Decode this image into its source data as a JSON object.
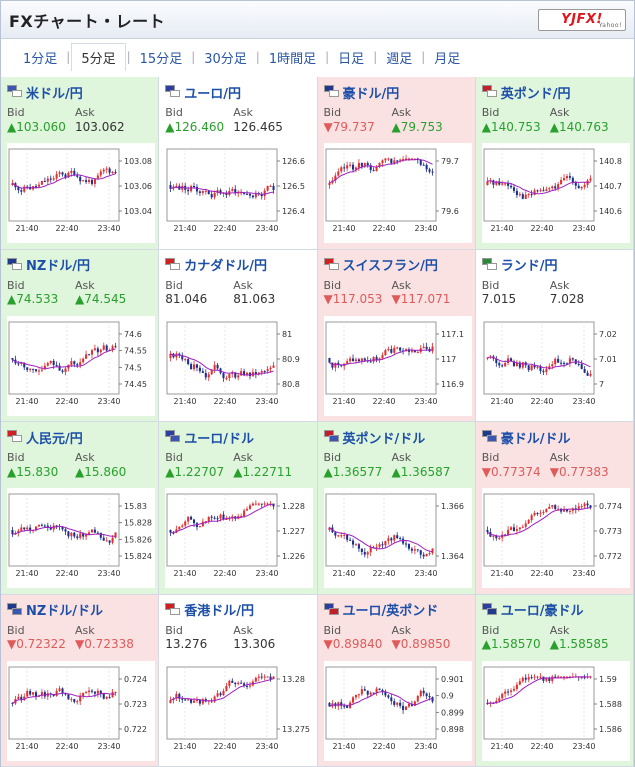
{
  "header": {
    "title": "FXチャート・レート",
    "logo": "YJFX!",
    "logo_sub": "Yahoo!"
  },
  "tabs": [
    {
      "label": "1分足",
      "active": false
    },
    {
      "label": "5分足",
      "active": true
    },
    {
      "label": "15分足",
      "active": false
    },
    {
      "label": "30分足",
      "active": false
    },
    {
      "label": "1時間足",
      "active": false
    },
    {
      "label": "日足",
      "active": false
    },
    {
      "label": "週足",
      "active": false
    },
    {
      "label": "月足",
      "active": false
    }
  ],
  "labels": {
    "bid": "Bid",
    "ask": "Ask"
  },
  "time_labels": [
    "21:40",
    "22:40",
    "23:40"
  ],
  "colors": {
    "up_card": "#dff5dc",
    "down_card": "#fbe2e2",
    "up_text": "#29a02d",
    "down_text": "#e05a5a",
    "pair_text": "#1d4fa8",
    "candle_up": "#e03030",
    "candle_down": "#1c2f8a",
    "ma": "#a020c0"
  },
  "pairs": [
    {
      "name": "米ドル/円",
      "card": "green",
      "bid": "103.060",
      "bid_dir": "up",
      "ask": "103.062",
      "ask_dir": "none",
      "flags": [
        "#3a56b0",
        "#ffffff"
      ],
      "y_ticks": [
        "103.08",
        "103.06",
        "103.04"
      ],
      "seed": 11
    },
    {
      "name": "ユーロ/円",
      "card": "white",
      "bid": "126.460",
      "bid_dir": "up",
      "ask": "126.465",
      "ask_dir": "none",
      "flags": [
        "#2a3fa0",
        "#ffffff"
      ],
      "y_ticks": [
        "126.6",
        "126.5",
        "126.4"
      ],
      "seed": 23
    },
    {
      "name": "豪ドル/円",
      "card": "red",
      "bid": "79.737",
      "bid_dir": "down",
      "ask": "79.753",
      "ask_dir": "up",
      "flags": [
        "#1f3a8a",
        "#ffffff"
      ],
      "y_ticks": [
        "79.7",
        "79.6"
      ],
      "seed": 37
    },
    {
      "name": "英ポンド/円",
      "card": "green",
      "bid": "140.753",
      "bid_dir": "up",
      "ask": "140.763",
      "ask_dir": "up",
      "flags": [
        "#c0202a",
        "#ffffff"
      ],
      "y_ticks": [
        "140.8",
        "140.7",
        "140.6"
      ],
      "seed": 41
    },
    {
      "name": "NZドル/円",
      "card": "green",
      "bid": "74.533",
      "bid_dir": "up",
      "ask": "74.545",
      "ask_dir": "up",
      "flags": [
        "#1f3a8a",
        "#ffffff"
      ],
      "y_ticks": [
        "74.6",
        "74.55",
        "74.5",
        "74.45"
      ],
      "seed": 53
    },
    {
      "name": "カナダドル/円",
      "card": "white",
      "bid": "81.046",
      "bid_dir": "none",
      "ask": "81.063",
      "ask_dir": "none",
      "flags": [
        "#d02020",
        "#ffffff"
      ],
      "y_ticks": [
        "81",
        "80.9",
        "80.8"
      ],
      "seed": 67
    },
    {
      "name": "スイスフラン/円",
      "card": "red",
      "bid": "117.053",
      "bid_dir": "down",
      "ask": "117.071",
      "ask_dir": "down",
      "flags": [
        "#d02020",
        "#ffffff"
      ],
      "y_ticks": [
        "117.1",
        "117",
        "116.9"
      ],
      "seed": 71
    },
    {
      "name": "ランド/円",
      "card": "white",
      "bid": "7.015",
      "bid_dir": "none",
      "ask": "7.028",
      "ask_dir": "none",
      "flags": [
        "#2a8a3a",
        "#ffffff"
      ],
      "y_ticks": [
        "7.02",
        "7.01",
        "7"
      ],
      "seed": 83
    },
    {
      "name": "人民元/円",
      "card": "green",
      "bid": "15.830",
      "bid_dir": "up",
      "ask": "15.860",
      "ask_dir": "up",
      "flags": [
        "#d02020",
        "#ffffff"
      ],
      "y_ticks": [
        "15.83",
        "15.828",
        "15.826",
        "15.824"
      ],
      "seed": 97
    },
    {
      "name": "ユーロ/ドル",
      "card": "green",
      "bid": "1.22707",
      "bid_dir": "up",
      "ask": "1.22711",
      "ask_dir": "up",
      "flags": [
        "#2a3fa0",
        "#3a56b0"
      ],
      "y_ticks": [
        "1.228",
        "1.227",
        "1.226"
      ],
      "seed": 101
    },
    {
      "name": "英ポンド/ドル",
      "card": "green",
      "bid": "1.36577",
      "bid_dir": "up",
      "ask": "1.36587",
      "ask_dir": "up",
      "flags": [
        "#c0202a",
        "#3a56b0"
      ],
      "y_ticks": [
        "1.366",
        "1.364"
      ],
      "seed": 113
    },
    {
      "name": "豪ドル/ドル",
      "card": "red",
      "bid": "0.77374",
      "bid_dir": "down",
      "ask": "0.77383",
      "ask_dir": "down",
      "flags": [
        "#1f3a8a",
        "#3a56b0"
      ],
      "y_ticks": [
        "0.774",
        "0.773",
        "0.772"
      ],
      "seed": 127
    },
    {
      "name": "NZドル/ドル",
      "card": "red",
      "bid": "0.72322",
      "bid_dir": "down",
      "ask": "0.72338",
      "ask_dir": "down",
      "flags": [
        "#1f3a8a",
        "#3a56b0"
      ],
      "y_ticks": [
        "0.724",
        "0.723",
        "0.722"
      ],
      "seed": 131
    },
    {
      "name": "香港ドル/円",
      "card": "white",
      "bid": "13.276",
      "bid_dir": "none",
      "ask": "13.306",
      "ask_dir": "none",
      "flags": [
        "#d02020",
        "#ffffff"
      ],
      "y_ticks": [
        "13.28",
        "13.275"
      ],
      "seed": 139
    },
    {
      "name": "ユーロ/英ポンド",
      "card": "red",
      "bid": "0.89840",
      "bid_dir": "down",
      "ask": "0.89850",
      "ask_dir": "down",
      "flags": [
        "#2a3fa0",
        "#c0202a"
      ],
      "y_ticks": [
        "0.901",
        "0.9",
        "0.899",
        "0.898"
      ],
      "seed": 149
    },
    {
      "name": "ユーロ/豪ドル",
      "card": "green",
      "bid": "1.58570",
      "bid_dir": "up",
      "ask": "1.58585",
      "ask_dir": "up",
      "flags": [
        "#2a3fa0",
        "#1f3a8a"
      ],
      "y_ticks": [
        "1.59",
        "1.588",
        "1.586"
      ],
      "seed": 157
    }
  ]
}
